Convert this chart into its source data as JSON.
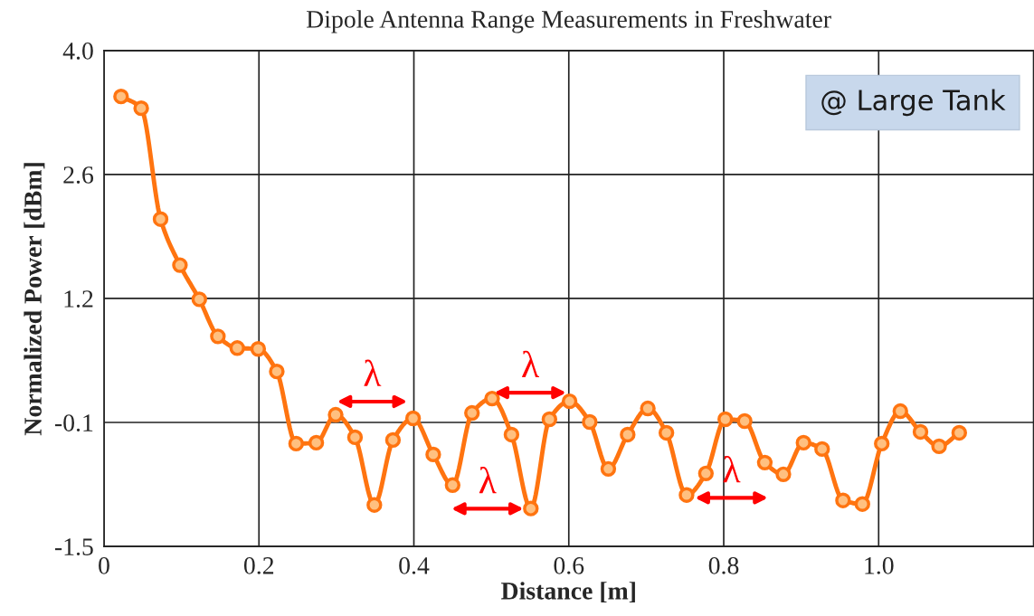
{
  "chart_data": {
    "type": "line",
    "title": "Dipole Antenna Range Measurements in Freshwater",
    "xlabel": "Distance [m]",
    "ylabel": "Normalized Power [dBm]",
    "x": [
      0.022,
      0.048,
      0.073,
      0.098,
      0.123,
      0.147,
      0.172,
      0.199,
      0.223,
      0.248,
      0.274,
      0.299,
      0.324,
      0.349,
      0.373,
      0.399,
      0.425,
      0.45,
      0.475,
      0.501,
      0.526,
      0.551,
      0.575,
      0.601,
      0.627,
      0.651,
      0.676,
      0.702,
      0.726,
      0.752,
      0.777,
      0.802,
      0.827,
      0.853,
      0.877,
      0.903,
      0.927,
      0.954,
      0.979,
      1.004,
      1.028,
      1.054,
      1.078,
      1.104
    ],
    "series": [
      {
        "color": "#ff7410",
        "values": [
          3.49,
          3.36,
          2.13,
          1.62,
          1.24,
          0.83,
          0.7,
          0.69,
          0.44,
          -0.36,
          -0.35,
          -0.04,
          -0.29,
          -1.04,
          -0.32,
          -0.08,
          -0.48,
          -0.82,
          -0.02,
          0.14,
          -0.26,
          -1.08,
          -0.09,
          0.11,
          -0.12,
          -0.64,
          -0.26,
          0.03,
          -0.24,
          -0.93,
          -0.69,
          -0.09,
          -0.11,
          -0.57,
          -0.7,
          -0.35,
          -0.42,
          -0.99,
          -1.03,
          -0.36,
          0.0,
          -0.23,
          -0.39,
          -0.24
        ]
      }
    ],
    "xlim": [
      0,
      1.2
    ],
    "xticks": [
      0,
      0.2,
      0.4,
      0.6,
      0.8,
      {
        "value": 1.0,
        "label": "1.0"
      }
    ],
    "ylim": [
      -1.5,
      4.0
    ],
    "yticks": [
      -1.5,
      {
        "value": -0.125,
        "label": "-0.1"
      },
      {
        "value": 1.25,
        "label": "1.2"
      },
      {
        "value": 2.625,
        "label": "2.6"
      },
      {
        "value": 4.0,
        "label": "4.0"
      }
    ],
    "grid": true,
    "marker": "circle",
    "line_style": "solid",
    "legend": false,
    "annotations": [
      "λ",
      "λ",
      "λ",
      "λ",
      "@ Large Tank"
    ]
  }
}
